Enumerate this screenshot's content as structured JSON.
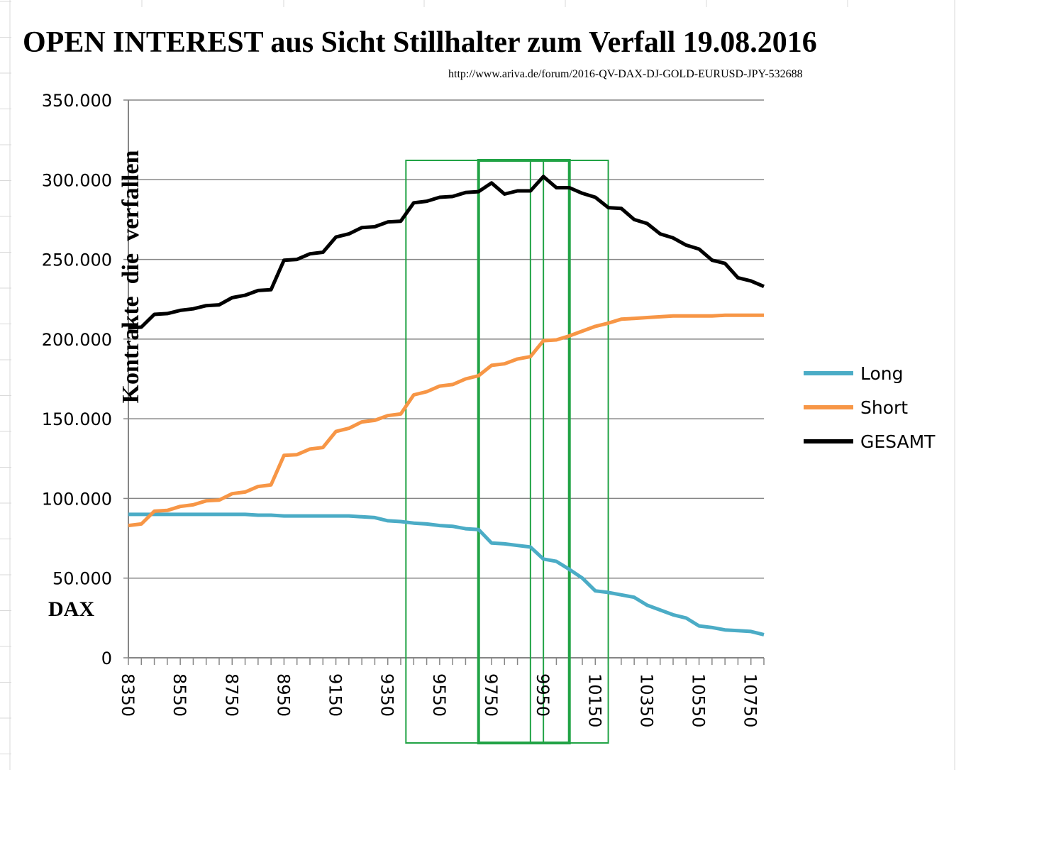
{
  "chart_data": {
    "type": "line",
    "title": "OPEN INTEREST aus Sicht Stillhalter zum Verfall 19.08.2016",
    "subtitle": "http://www.ariva.de/forum/2016-QV-DAX-DJ-GOLD-EURUSD-JPY-532688",
    "ylabel": "Kontrakte  die  verfallen",
    "xlabel": "DAX",
    "ylim": [
      0,
      350000
    ],
    "y_ticks": [
      0,
      50000,
      100000,
      150000,
      200000,
      250000,
      300000,
      350000
    ],
    "y_tick_labels": [
      "0",
      "50.000",
      "100.000",
      "150.000",
      "200.000",
      "250.000",
      "300.000",
      "350.000"
    ],
    "x_tick_labels": [
      "8350",
      "8550",
      "8750",
      "8950",
      "9150",
      "9350",
      "9550",
      "9750",
      "9950",
      "10150",
      "10350",
      "10550",
      "10750"
    ],
    "legend_position": "right",
    "x": [
      8350,
      8400,
      8450,
      8500,
      8550,
      8600,
      8650,
      8700,
      8750,
      8800,
      8850,
      8900,
      8950,
      9000,
      9050,
      9100,
      9150,
      9200,
      9250,
      9300,
      9350,
      9400,
      9450,
      9500,
      9550,
      9600,
      9650,
      9700,
      9750,
      9800,
      9850,
      9900,
      9950,
      10000,
      10050,
      10100,
      10150,
      10200,
      10250,
      10300,
      10350,
      10400,
      10450,
      10500,
      10550,
      10600,
      10650,
      10700,
      10750,
      10800
    ],
    "series": [
      {
        "name": "Long",
        "color": "#4bacc6",
        "values": [
          90000,
          90000,
          90000,
          90000,
          90000,
          90000,
          90000,
          90000,
          90000,
          90000,
          89500,
          89500,
          89000,
          89000,
          89000,
          89000,
          89000,
          89000,
          88500,
          88000,
          86000,
          85500,
          84500,
          84000,
          83000,
          82500,
          81000,
          80500,
          72000,
          71500,
          70500,
          69500,
          62000,
          60500,
          55500,
          50000,
          42000,
          41000,
          39500,
          38000,
          33000,
          30000,
          27000,
          25000,
          20000,
          19000,
          17500,
          17000,
          16500,
          14500
        ]
      },
      {
        "name": "Short",
        "color": "#f79646",
        "values": [
          83000,
          84000,
          92000,
          92500,
          95000,
          96000,
          98500,
          99000,
          103000,
          104000,
          107500,
          108500,
          127000,
          127500,
          131000,
          132000,
          142000,
          144000,
          148000,
          149000,
          152000,
          153000,
          165000,
          167000,
          170500,
          171500,
          175000,
          177000,
          183500,
          184500,
          187500,
          189000,
          199000,
          199500,
          202000,
          205000,
          208000,
          210000,
          212500,
          213000,
          213500,
          214000,
          214500,
          214500,
          214500,
          214500,
          215000,
          215000,
          215000,
          215000
        ]
      },
      {
        "name": "GESAMT",
        "color": "#000000",
        "values": [
          207000,
          207500,
          215500,
          216000,
          218000,
          219000,
          221000,
          221500,
          226000,
          227500,
          230500,
          231000,
          249500,
          250000,
          253500,
          254500,
          264000,
          266000,
          270000,
          270500,
          273500,
          274000,
          285500,
          286500,
          289000,
          289500,
          292000,
          292500,
          298000,
          291000,
          293000,
          293000,
          302000,
          295000,
          295000,
          291500,
          289000,
          282500,
          282000,
          275000,
          272500,
          266000,
          263500,
          259000,
          256500,
          249500,
          247500,
          238500,
          236500,
          233000
        ]
      }
    ],
    "highlight_ranges": [
      [
        9420,
        9900
      ],
      [
        9700,
        10050
      ],
      [
        9950,
        10200
      ]
    ]
  }
}
